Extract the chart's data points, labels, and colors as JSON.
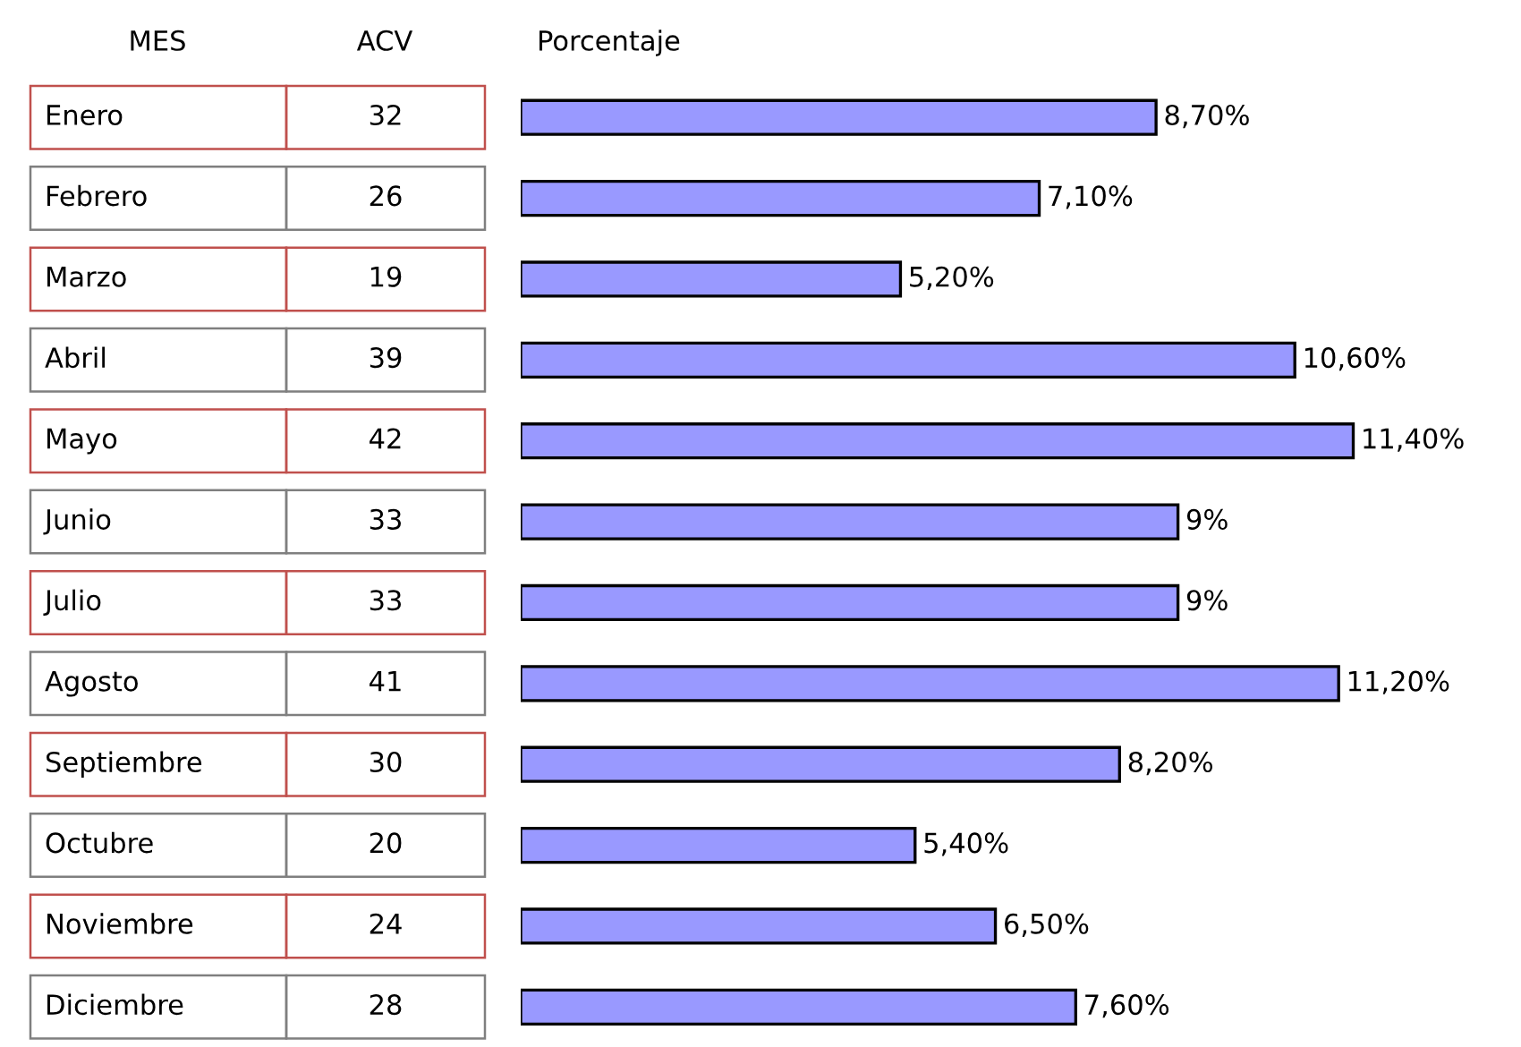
{
  "chart_data": {
    "type": "bar",
    "orientation": "horizontal",
    "title": "Porcentaje",
    "categories": [
      "Enero",
      "Febrero",
      "Marzo",
      "Abril",
      "Mayo",
      "Junio",
      "Julio",
      "Agosto",
      "Septiembre",
      "Octubre",
      "Noviembre",
      "Diciembre"
    ],
    "values": [
      8.7,
      7.1,
      5.2,
      10.6,
      11.4,
      9,
      9,
      11.2,
      8.2,
      5.4,
      6.5,
      7.6
    ],
    "value_labels": [
      "8,70%",
      "7,10%",
      "5,20%",
      "10,60%",
      "11,40%",
      "9%",
      "9%",
      "11,20%",
      "8,20%",
      "5,40%",
      "6,50%",
      "7,60%"
    ],
    "color": "#9999ff",
    "annotations": [
      "MES",
      "ACV",
      "32",
      "26",
      "19",
      "39",
      "42",
      "33",
      "33",
      "41",
      "30",
      "20",
      "24",
      "28"
    ],
    "tick_labels": false,
    "legend": false
  }
}
